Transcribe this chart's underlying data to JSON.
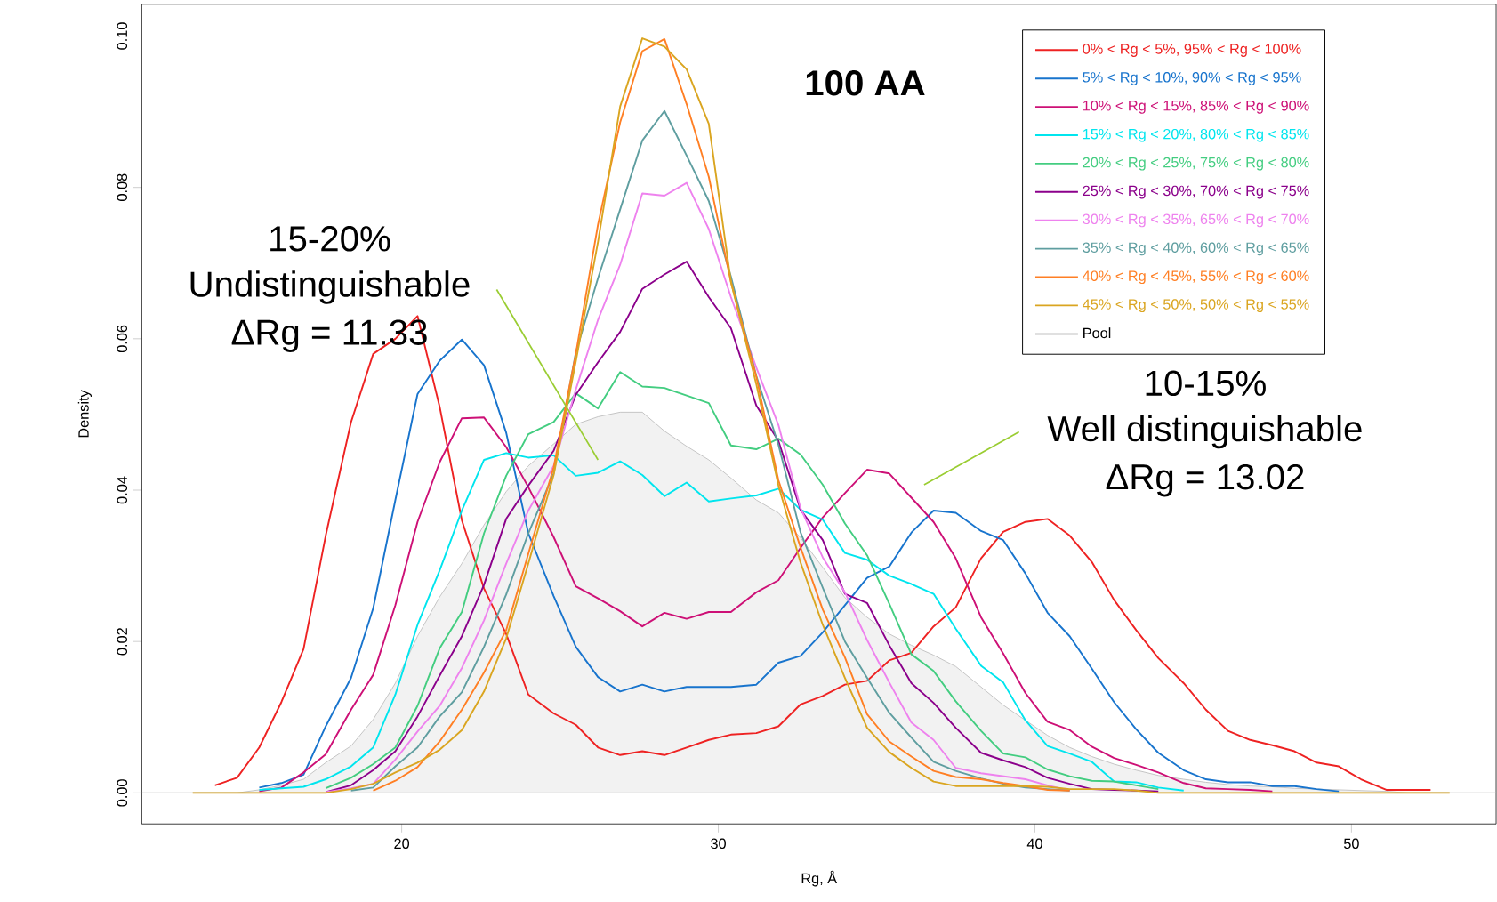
{
  "chart_data": {
    "type": "line",
    "title": "100 AA",
    "xlabel": "Rg, Å",
    "ylabel": "Density",
    "xlim": [
      11.79,
      54.57
    ],
    "ylim": [
      -0.0041,
      0.1042
    ],
    "xticks": [
      20,
      30,
      40,
      50
    ],
    "yticks": [
      {
        "value": 0,
        "label": "0.00"
      },
      {
        "value": 0.02,
        "label": "0.02"
      },
      {
        "value": 0.04,
        "label": "0.04"
      },
      {
        "value": 0.06,
        "label": "0.06"
      },
      {
        "value": 0.08,
        "label": "0.08"
      },
      {
        "value": 0.1,
        "label": "0.10"
      }
    ],
    "legend": "top right",
    "ref_lines": [
      {
        "axis": "y",
        "value": 0,
        "color": "#bebebe"
      }
    ],
    "annotations": [
      "15-20%",
      "Undistinguishable",
      "ΔRg = 11.33",
      "10-15%",
      "Well distinguishable",
      "ΔRg = 13.02"
    ],
    "x": [
      13.4,
      14.1,
      14.8,
      15.5,
      16.2,
      16.9,
      17.6,
      18.4,
      19.1,
      19.8,
      20.5,
      21.2,
      21.9,
      22.6,
      23.3,
      24.0,
      24.8,
      25.5,
      26.2,
      26.9,
      27.6,
      28.3,
      29.0,
      29.7,
      30.4,
      31.2,
      31.9,
      32.6,
      33.3,
      34.0,
      34.7,
      35.4,
      36.1,
      36.8,
      37.5,
      38.3,
      39.0,
      39.7,
      40.4,
      41.1,
      41.8,
      42.5,
      43.2,
      43.9,
      44.7,
      45.4,
      46.1,
      46.8,
      47.5,
      48.2,
      48.9,
      49.6,
      50.3,
      51.1,
      51.8,
      52.5,
      53.1
    ],
    "series": [
      {
        "name": "0% < Rg < 5%, 95% < Rg < 100%",
        "color": "#ee2222",
        "values": [
          null,
          0.001,
          0.002,
          0.006,
          0.012,
          0.019,
          0.034,
          0.049,
          0.058,
          0.06,
          0.063,
          0.051,
          0.036,
          0.027,
          0.021,
          0.013,
          0.0105,
          0.009,
          0.006,
          0.005,
          0.0055,
          0.005,
          0.006,
          0.007,
          0.0077,
          0.0079,
          0.0088,
          0.0117,
          0.0128,
          0.0143,
          0.0148,
          0.0175,
          0.0185,
          0.022,
          0.0245,
          0.031,
          0.0345,
          0.0358,
          0.0362,
          0.034,
          0.0305,
          0.0255,
          0.0215,
          0.0178,
          0.0145,
          0.011,
          0.0082,
          0.007,
          0.0063,
          0.0055,
          0.004,
          0.0035,
          0.0018,
          0.0004,
          0.0004,
          0.0004,
          null
        ]
      },
      {
        "name": "5% < Rg < 10%, 90% < Rg < 95%",
        "color": "#1874cd",
        "values": [
          null,
          null,
          null,
          0.0007,
          0.0013,
          0.0024,
          0.0088,
          0.0152,
          0.0244,
          0.0387,
          0.0527,
          0.0571,
          0.0599,
          0.0565,
          0.0476,
          0.0343,
          0.026,
          0.0193,
          0.0153,
          0.0134,
          0.0143,
          0.0134,
          0.014,
          0.014,
          0.014,
          0.0143,
          0.0172,
          0.0181,
          0.0212,
          0.0248,
          0.0284,
          0.0299,
          0.0344,
          0.0373,
          0.037,
          0.0346,
          0.0334,
          0.029,
          0.0238,
          0.0207,
          0.0164,
          0.012,
          0.0084,
          0.0053,
          0.003,
          0.0018,
          0.0014,
          0.0014,
          0.0009,
          0.0009,
          0.0005,
          0.0002,
          null,
          null,
          null,
          null,
          null
        ]
      },
      {
        "name": "10% < Rg < 15%, 85% < Rg < 90%",
        "color": "#cd1076",
        "values": [
          null,
          null,
          null,
          0.0002,
          0.0007,
          0.0027,
          0.0051,
          0.011,
          0.0156,
          0.0248,
          0.0358,
          0.0437,
          0.0495,
          0.0496,
          0.0457,
          0.0404,
          0.0338,
          0.0273,
          0.0257,
          0.024,
          0.022,
          0.0238,
          0.023,
          0.0239,
          0.0239,
          0.0265,
          0.0281,
          0.0324,
          0.0364,
          0.0396,
          0.0427,
          0.0422,
          0.039,
          0.0358,
          0.031,
          0.0232,
          0.0184,
          0.0132,
          0.0094,
          0.0083,
          0.0061,
          0.0046,
          0.0037,
          0.0027,
          0.0013,
          0.0006,
          0.0005,
          0.0004,
          0.0002,
          null,
          null,
          null,
          null,
          null,
          null,
          null,
          null
        ]
      },
      {
        "name": "15% < Rg < 20%, 80% < Rg < 85%",
        "color": "#00e5ee",
        "values": [
          null,
          null,
          null,
          0.0004,
          0.0006,
          0.0008,
          0.0018,
          0.0035,
          0.006,
          0.013,
          0.0222,
          0.0294,
          0.0373,
          0.044,
          0.0449,
          0.0443,
          0.0446,
          0.0419,
          0.0423,
          0.0438,
          0.042,
          0.0392,
          0.041,
          0.0385,
          0.0389,
          0.0393,
          0.0402,
          0.0374,
          0.0361,
          0.0317,
          0.0308,
          0.0287,
          0.0276,
          0.0263,
          0.0217,
          0.0168,
          0.0146,
          0.0096,
          0.0062,
          0.0052,
          0.0041,
          0.0015,
          0.0014,
          0.0007,
          0.0003,
          null,
          null,
          null,
          null,
          null,
          null,
          null,
          null,
          null,
          null,
          null,
          null
        ]
      },
      {
        "name": "20% < Rg < 25%, 75% < Rg < 80%",
        "color": "#43cd80",
        "values": [
          null,
          null,
          null,
          null,
          null,
          null,
          0.0006,
          0.002,
          0.0038,
          0.006,
          0.0115,
          0.0191,
          0.0239,
          0.0343,
          0.0419,
          0.0474,
          0.049,
          0.0528,
          0.0508,
          0.0556,
          0.0537,
          0.0535,
          0.0525,
          0.0515,
          0.0459,
          0.0454,
          0.0468,
          0.0447,
          0.0407,
          0.0356,
          0.0314,
          0.025,
          0.0183,
          0.0161,
          0.0121,
          0.0082,
          0.0052,
          0.0047,
          0.0031,
          0.0022,
          0.0016,
          0.0015,
          0.001,
          0.0005,
          null,
          null,
          null,
          null,
          null,
          null,
          null,
          null,
          null,
          null,
          null,
          null,
          null
        ]
      },
      {
        "name": "25% < Rg < 30%, 70% < Rg < 75%",
        "color": "#8b008b",
        "values": [
          null,
          null,
          null,
          null,
          null,
          null,
          0.0001,
          0.001,
          0.003,
          0.0055,
          0.0101,
          0.0155,
          0.0207,
          0.0275,
          0.0362,
          0.0406,
          0.0452,
          0.0526,
          0.0569,
          0.0609,
          0.0666,
          0.0685,
          0.0702,
          0.0655,
          0.0614,
          0.0512,
          0.0465,
          0.0374,
          0.0334,
          0.0263,
          0.0251,
          0.0195,
          0.0145,
          0.0119,
          0.0086,
          0.0053,
          0.0043,
          0.0034,
          0.002,
          0.0012,
          0.0005,
          0.0004,
          0.0003,
          0.0002,
          null,
          null,
          null,
          null,
          null,
          null,
          null,
          null,
          null,
          null,
          null,
          null,
          null
        ]
      },
      {
        "name": "30% < Rg < 35%, 65% < Rg < 70%",
        "color": "#ee82ee",
        "values": [
          null,
          null,
          null,
          null,
          null,
          null,
          0.0001,
          0.0006,
          0.0012,
          0.0044,
          0.0081,
          0.0115,
          0.0165,
          0.0228,
          0.0303,
          0.0373,
          0.0432,
          0.0533,
          0.0625,
          0.0698,
          0.0792,
          0.0789,
          0.0806,
          0.0745,
          0.0655,
          0.0562,
          0.0486,
          0.0376,
          0.0311,
          0.0265,
          0.0202,
          0.0146,
          0.0093,
          0.007,
          0.0033,
          0.0026,
          0.0022,
          0.0018,
          0.001,
          0.0003,
          null,
          null,
          null,
          null,
          null,
          null,
          null,
          null,
          null,
          null,
          null,
          null,
          null,
          null,
          null,
          null,
          null
        ]
      },
      {
        "name": "35% < Rg < 40%, 60% < Rg < 65%",
        "color": "#5f9ea0",
        "values": [
          null,
          null,
          null,
          null,
          null,
          null,
          null,
          0.0003,
          0.0007,
          0.0035,
          0.006,
          0.0101,
          0.0133,
          0.0193,
          0.0262,
          0.0343,
          0.0422,
          0.0582,
          0.068,
          0.0771,
          0.0862,
          0.0901,
          0.0842,
          0.0782,
          0.0682,
          0.0551,
          0.046,
          0.0344,
          0.0271,
          0.02,
          0.0152,
          0.0106,
          0.0073,
          0.0041,
          0.0029,
          0.0019,
          0.0012,
          0.0007,
          0.0005,
          0.0003,
          null,
          null,
          null,
          null,
          null,
          null,
          null,
          null,
          null,
          null,
          null,
          null,
          null,
          null,
          null,
          null,
          null
        ]
      },
      {
        "name": "40% < Rg < 45%, 55% < Rg < 60%",
        "color": "#ff7f24",
        "values": [
          null,
          null,
          null,
          null,
          null,
          null,
          null,
          null,
          0.0003,
          0.0016,
          0.0034,
          0.0068,
          0.011,
          0.0159,
          0.0215,
          0.0316,
          0.043,
          0.058,
          0.0751,
          0.0886,
          0.098,
          0.0996,
          0.091,
          0.0814,
          0.0675,
          0.055,
          0.0413,
          0.0324,
          0.0242,
          0.0179,
          0.0104,
          0.0068,
          0.0048,
          0.0029,
          0.0021,
          0.0018,
          0.0013,
          0.0009,
          0.0004,
          0.0003,
          null,
          null,
          null,
          null,
          null,
          null,
          null,
          null,
          null,
          null,
          null,
          null,
          null,
          null,
          null,
          null,
          null
        ]
      },
      {
        "name": "45% < Rg < 50%, 50% < Rg < 55%",
        "color": "#daa520",
        "values": [
          0,
          0,
          0,
          0,
          0,
          0,
          0,
          0.0005,
          0.0012,
          0.0027,
          0.004,
          0.0057,
          0.0083,
          0.0134,
          0.0204,
          0.0303,
          0.042,
          0.057,
          0.0728,
          0.0907,
          0.0997,
          0.0986,
          0.0956,
          0.0884,
          0.0675,
          0.054,
          0.0406,
          0.0304,
          0.0222,
          0.0152,
          0.0086,
          0.0054,
          0.0033,
          0.0015,
          0.0009,
          0.0009,
          0.0009,
          0.0009,
          0.0008,
          0.0005,
          0.0005,
          0.0005,
          0.0003,
          0,
          0,
          0,
          0,
          0,
          0,
          0,
          0,
          0,
          0,
          0,
          0,
          0,
          0
        ]
      },
      {
        "name": "Pool",
        "type": "area",
        "color": "#f2f2f2",
        "values": [
          0,
          0,
          0,
          0.0004,
          0.001,
          0.0018,
          0.004,
          0.0062,
          0.0097,
          0.0145,
          0.0207,
          0.0259,
          0.0303,
          0.0354,
          0.0398,
          0.0432,
          0.0461,
          0.0487,
          0.0497,
          0.0503,
          0.0503,
          0.0478,
          0.0458,
          0.044,
          0.0416,
          0.0387,
          0.037,
          0.0337,
          0.0298,
          0.0258,
          0.0232,
          0.021,
          0.0195,
          0.0182,
          0.0167,
          0.014,
          0.0116,
          0.0096,
          0.0076,
          0.006,
          0.0048,
          0.0038,
          0.003,
          0.0023,
          0.0018,
          0.0014,
          0.0011,
          0.0009,
          0.0008,
          0.0006,
          0.0005,
          0.0004,
          0.0003,
          0.0002,
          0,
          0,
          0
        ]
      }
    ]
  }
}
